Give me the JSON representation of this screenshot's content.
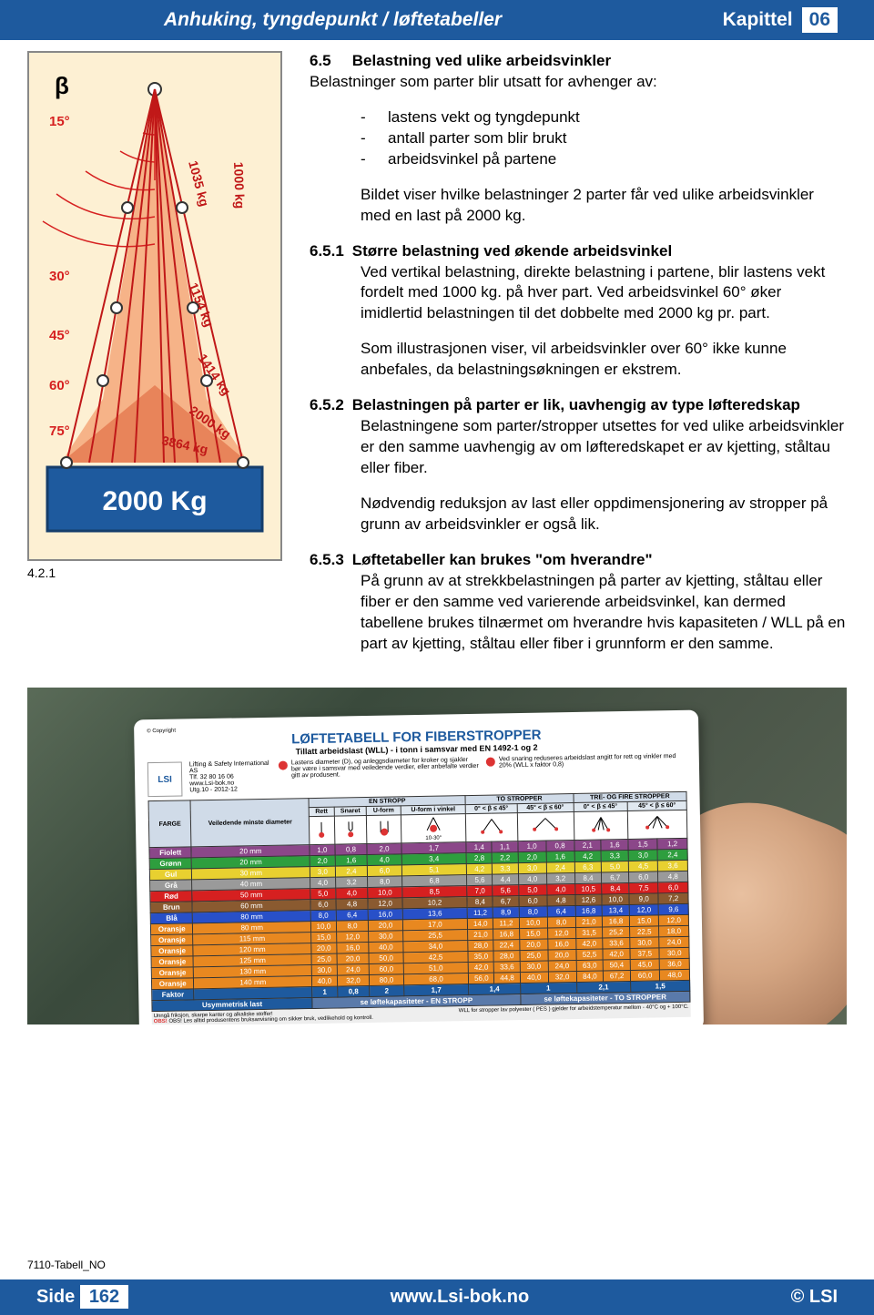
{
  "header": {
    "title": "Anhuking, tyngdepunkt / løftetabeller",
    "chapter_word": "Kapittel",
    "chapter_num": "06"
  },
  "diagram": {
    "beta": "β",
    "angles": [
      "15°",
      "30°",
      "45°",
      "60°",
      "75°"
    ],
    "loads": [
      "1035 kg",
      "1000 kg",
      "1154 kg",
      "1414 kg",
      "2000 kg",
      "3864 kg"
    ],
    "weight_label": "2000 Kg",
    "fig_label": "4.2.1",
    "angle_color": "#d62020",
    "line_color": "#c01818",
    "bg_color": "#fdf0d3",
    "shade_color": "#f5a87a",
    "box_color": "#1e5a9e"
  },
  "content": {
    "s65_num": "6.5",
    "s65_head": "Belastning ved ulike arbeidsvinkler",
    "s65_intro": "Belastninger som parter blir utsatt for avhenger av:",
    "s65_bullets": [
      "lastens vekt og tyngdepunkt",
      "antall parter som blir brukt",
      "arbeidsvinkel på partene"
    ],
    "s65_p2": "Bildet viser hvilke belastninger 2 parter får ved ulike arbeidsvinkler med en last på 2000 kg.",
    "s651_num": "6.5.1",
    "s651_head": "Større belastning ved økende arbeidsvinkel",
    "s651_p1": "Ved vertikal belastning, direkte belastning i partene, blir lastens vekt fordelt med 1000 kg. på hver part. Ved arbeidsvinkel 60° øker imidlertid belastningen til det dobbelte med 2000 kg pr. part.",
    "s651_p2": "Som illustrasjonen viser, vil arbeidsvinkler over 60° ikke kunne anbefales, da belastningsøkningen er ekstrem.",
    "s652_num": "6.5.2",
    "s652_head": "Belastningen på parter er lik, uavhengig av type løfteredskap",
    "s652_p1": "Belastningene som parter/stropper utsettes for ved ulike arbeidsvinkler er den samme uavhengig av om løfteredskapet er av kjetting, ståltau eller fiber.",
    "s652_p2": "Nødvendig reduksjon av last eller oppdimensjonering av stropper på grunn av arbeidsvinkler er også lik.",
    "s653_num": "6.5.3",
    "s653_head": "Løftetabeller kan brukes \"om hverandre\"",
    "s653_p1": "På grunn av at strekkbelastningen på parter av kjetting, ståltau eller fiber er den samme ved varierende arbeidsvinkel, kan dermed tabellene brukes tilnærmet om hverandre hvis kapasiteten / WLL på en part av kjetting, ståltau eller fiber i grunnform er den samme."
  },
  "card": {
    "title": "LØFTETABELL FOR FIBERSTROPPER",
    "subtitle": "Tillatt arbeidslast (WLL) - i tonn i samsvar med EN 1492-1 og 2",
    "copyright": "© Copyright",
    "company": "Lifting & Safety International AS",
    "tel": "Tlf. 32 80 16 06",
    "web": "www.Lsi-bok.no",
    "utg": "Utg.10 - 2012-12",
    "note1": "Lastens diameter (D), og anleggsdiameter for kroker og sjakler bør være i samsvar med veiledende verdier, eller anbefalte verdier gitt av produsent.",
    "note2": "Ved snaring reduseres arbeidslast angitt for rett og vinkler med 20% (WLL x faktor 0,8)",
    "hdr_farge": "FARGE",
    "hdr_diameter": "Veiledende minste diameter",
    "hdr_en": "EN STROPP",
    "hdr_to": "TO STROPPER",
    "hdr_tre": "TRE- OG FIRE STROPPER",
    "sub_rett": "Rett",
    "sub_snaret": "Snaret",
    "sub_uform": "U-form",
    "sub_uvinkel": "U-form i vinkel",
    "ang_045": "0° < β ≤ 45°",
    "ang_4560": "45° < β ≤ 60°",
    "ang_1030": "10-30°",
    "rows": [
      {
        "color": "Fiolett",
        "hex": "#8b4789",
        "d": "20 mm",
        "v": [
          "1,0",
          "0,8",
          "2,0",
          "1,7",
          "1,4",
          "1,1",
          "1,0",
          "0,8",
          "2,1",
          "1,6",
          "1,5",
          "1,2"
        ]
      },
      {
        "color": "Grønn",
        "hex": "#2e9e3e",
        "d": "20 mm",
        "v": [
          "2,0",
          "1,6",
          "4,0",
          "3,4",
          "2,8",
          "2,2",
          "2,0",
          "1,6",
          "4,2",
          "3,3",
          "3,0",
          "2,4"
        ]
      },
      {
        "color": "Gul",
        "hex": "#e8d030",
        "d": "30 mm",
        "v": [
          "3,0",
          "2,4",
          "6,0",
          "5,1",
          "4,2",
          "3,3",
          "3,0",
          "2,4",
          "6,3",
          "5,0",
          "4,5",
          "3,6"
        ]
      },
      {
        "color": "Grå",
        "hex": "#9a9a9a",
        "d": "40 mm",
        "v": [
          "4,0",
          "3,2",
          "8,0",
          "6,8",
          "5,6",
          "4,4",
          "4,0",
          "3,2",
          "8,4",
          "6,7",
          "6,0",
          "4,8"
        ]
      },
      {
        "color": "Rød",
        "hex": "#d62020",
        "d": "50 mm",
        "v": [
          "5,0",
          "4,0",
          "10,0",
          "8,5",
          "7,0",
          "5,6",
          "5,0",
          "4,0",
          "10,5",
          "8,4",
          "7,5",
          "6,0"
        ]
      },
      {
        "color": "Brun",
        "hex": "#8a5a30",
        "d": "60 mm",
        "v": [
          "6,0",
          "4,8",
          "12,0",
          "10,2",
          "8,4",
          "6,7",
          "6,0",
          "4,8",
          "12,6",
          "10,0",
          "9,0",
          "7,2"
        ]
      },
      {
        "color": "Blå",
        "hex": "#2850c8",
        "d": "80 mm",
        "v": [
          "8,0",
          "6,4",
          "16,0",
          "13,6",
          "11,2",
          "8,9",
          "8,0",
          "6,4",
          "16,8",
          "13,4",
          "12,0",
          "9,6"
        ]
      },
      {
        "color": "Oransje",
        "hex": "#e88820",
        "d": "80 mm",
        "v": [
          "10,0",
          "8,0",
          "20,0",
          "17,0",
          "14,0",
          "11,2",
          "10,0",
          "8,0",
          "21,0",
          "16,8",
          "15,0",
          "12,0"
        ]
      },
      {
        "color": "Oransje",
        "hex": "#e88820",
        "d": "115 mm",
        "v": [
          "15,0",
          "12,0",
          "30,0",
          "25,5",
          "21,0",
          "16,8",
          "15,0",
          "12,0",
          "31,5",
          "25,2",
          "22,5",
          "18,0"
        ]
      },
      {
        "color": "Oransje",
        "hex": "#e88820",
        "d": "120 mm",
        "v": [
          "20,0",
          "16,0",
          "40,0",
          "34,0",
          "28,0",
          "22,4",
          "20,0",
          "16,0",
          "42,0",
          "33,6",
          "30,0",
          "24,0"
        ]
      },
      {
        "color": "Oransje",
        "hex": "#e88820",
        "d": "125 mm",
        "v": [
          "25,0",
          "20,0",
          "50,0",
          "42,5",
          "35,0",
          "28,0",
          "25,0",
          "20,0",
          "52,5",
          "42,0",
          "37,5",
          "30,0"
        ]
      },
      {
        "color": "Oransje",
        "hex": "#e88820",
        "d": "130 mm",
        "v": [
          "30,0",
          "24,0",
          "60,0",
          "51,0",
          "42,0",
          "33,6",
          "30,0",
          "24,0",
          "63,0",
          "50,4",
          "45,0",
          "36,0"
        ]
      },
      {
        "color": "Oransje",
        "hex": "#e88820",
        "d": "140 mm",
        "v": [
          "40,0",
          "32,0",
          "80,0",
          "68,0",
          "56,0",
          "44,8",
          "40,0",
          "32,0",
          "84,0",
          "67,2",
          "60,0",
          "48,0"
        ]
      }
    ],
    "faktor_label": "Faktor",
    "faktor_sub": "Usymmetrisk last",
    "faktors": [
      "1",
      "0,8",
      "2",
      "1,7",
      "1,4",
      "",
      "1",
      "",
      "2,1",
      "",
      "1,5",
      ""
    ],
    "faktor_note1": "se løftekapasiteter - EN STROPP",
    "faktor_note2": "se løftekapasiteter - TO STROPPER",
    "bottom1": "Unngå friksjon, skarpe kanter og alkaliske stoffer!",
    "bottom2": "OBS! Les alltid produsentens bruksanvisning om sikker bruk, vedlikehold og kontroll.",
    "bottom3": "WLL for stropper lav polyester ( PES ) gjelder for arbeidstemperatur mellom - 40°C og + 100°C."
  },
  "footer": {
    "code": "7110-Tabell_NO",
    "side": "Side",
    "page": "162",
    "url": "www.Lsi-bok.no",
    "copyright": "© LSI"
  }
}
